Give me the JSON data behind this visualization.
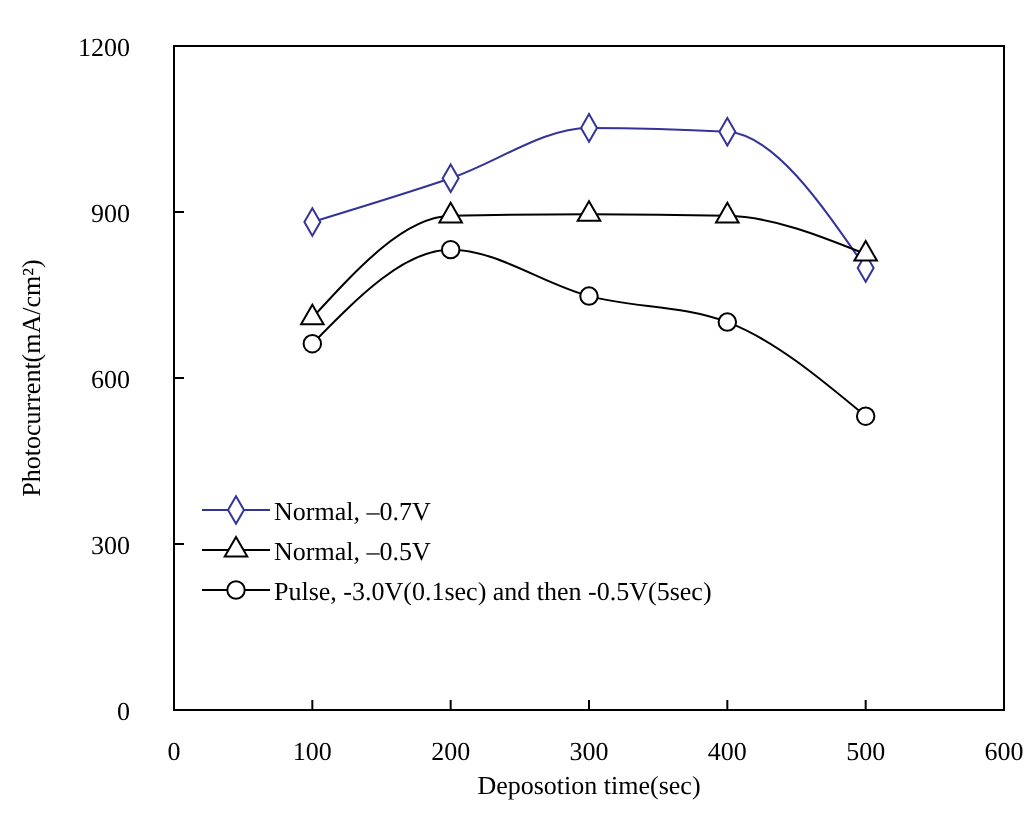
{
  "chart_data": {
    "type": "line",
    "xlabel": "Deposotion time(sec)",
    "ylabel": "Photocurrent(mA/cm²)",
    "x": [
      100,
      200,
      300,
      400,
      500
    ],
    "xlim": [
      0,
      600
    ],
    "xticks": [
      0,
      100,
      200,
      300,
      400,
      500,
      600
    ],
    "ylim": [
      0,
      1200
    ],
    "yticks": [
      0,
      300,
      600,
      900,
      1200
    ],
    "legend": "bottom left",
    "grid": false,
    "series": [
      {
        "name": "Normal, –0.7V",
        "color": "#333399",
        "marker": "diamond",
        "values": [
          882,
          961,
          1052,
          1045,
          799
        ]
      },
      {
        "name": "Normal, –0.5V",
        "color": "#000000",
        "marker": "triangle",
        "values": [
          709,
          893,
          896,
          893,
          824
        ]
      },
      {
        "name": "Pulse, -3.0V(0.1sec) and then -0.5V(5sec)",
        "color": "#000000",
        "marker": "circle",
        "values": [
          662,
          832,
          748,
          701,
          531
        ]
      }
    ]
  }
}
